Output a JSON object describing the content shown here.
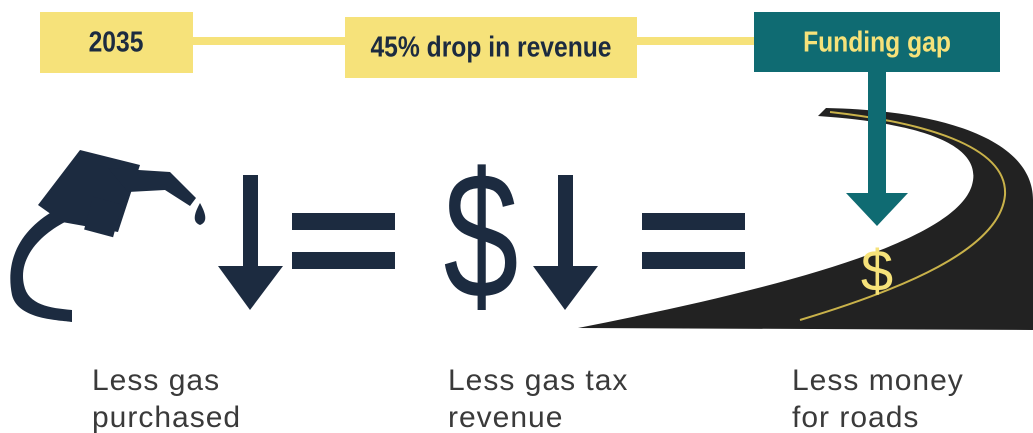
{
  "timeline": {
    "year": "2035",
    "drop": "45% drop in revenue",
    "gap": "Funding gap"
  },
  "symbols": {
    "revenue": "$",
    "road": "$"
  },
  "captions": [
    {
      "lines": [
        "Less gas",
        "purchased"
      ]
    },
    {
      "lines": [
        "Less gas tax",
        "revenue"
      ]
    },
    {
      "lines": [
        "Less money",
        "for roads"
      ]
    }
  ]
}
